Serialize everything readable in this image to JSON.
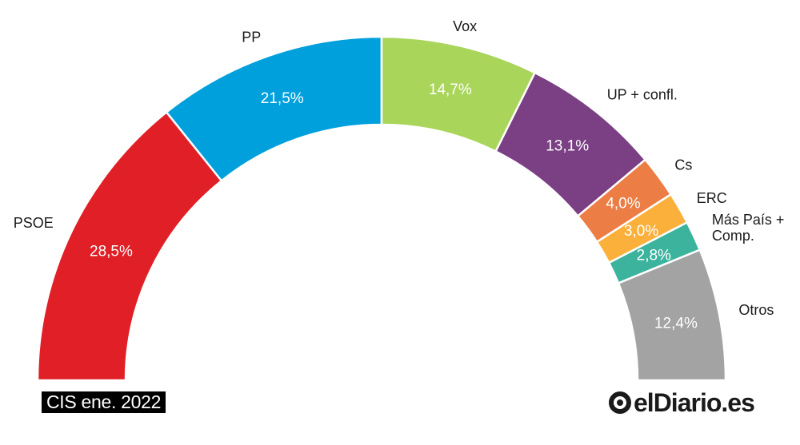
{
  "chart_data": {
    "type": "pie",
    "subtype": "semicircle-donut",
    "title": "",
    "series": [
      {
        "name": "PSOE",
        "value": 28.5,
        "label": "28,5%",
        "color": "#e01f26"
      },
      {
        "name": "PP",
        "value": 21.5,
        "label": "21,5%",
        "color": "#00a0dc"
      },
      {
        "name": "Vox",
        "value": 14.7,
        "label": "14,7%",
        "color": "#a8d55a"
      },
      {
        "name": "UP + confl.",
        "value": 13.1,
        "label": "13,1%",
        "color": "#7b3f84"
      },
      {
        "name": "Cs",
        "value": 4.0,
        "label": "4,0%",
        "color": "#eb7d45"
      },
      {
        "name": "ERC",
        "value": 3.0,
        "label": "3,0%",
        "color": "#fbb03b"
      },
      {
        "name": "Más País + Comp.",
        "name_lines": [
          "Más País +",
          "Comp."
        ],
        "value": 2.8,
        "label": "2,8%",
        "color": "#3bb39d"
      },
      {
        "name": "Otros",
        "value": 12.4,
        "label": "12,4%",
        "color": "#a3a3a3"
      }
    ]
  },
  "source_label": "CIS ene. 2022",
  "brand": {
    "name": "elDiario.es",
    "icon": "eldiario-logo-icon",
    "color": "#1a1a1a"
  }
}
